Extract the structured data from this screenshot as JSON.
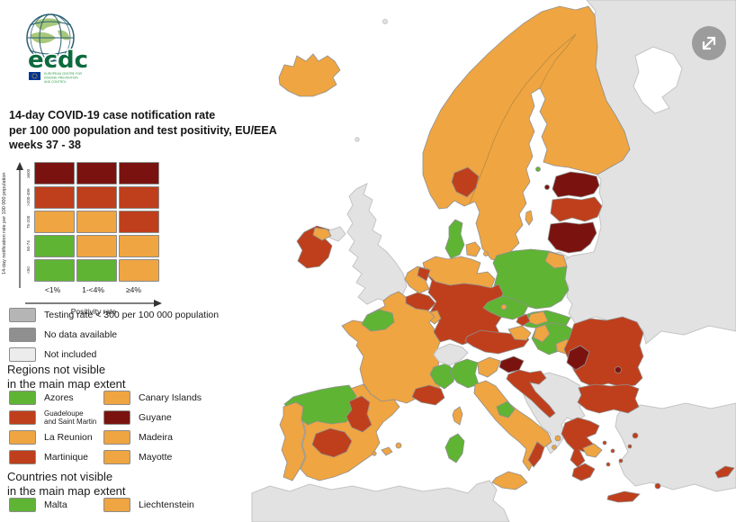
{
  "logo": {
    "wordmark": "ecdc",
    "org_lines": [
      "EUROPEAN CENTRE FOR",
      "DISEASE PREVENTION",
      "AND CONTROL"
    ]
  },
  "title": {
    "lines": [
      "14-day COVID-19 case notification rate",
      "per 100 000 population and test positivity, EU/EEA",
      "weeks 37 - 38"
    ]
  },
  "palette": {
    "green": "#5fb434",
    "orange": "#efa541",
    "red": "#bf3f1c",
    "darkred": "#7a130f",
    "gray_testing": "#b5b5b5",
    "gray_nodata": "#8f8f8f",
    "gray_notincluded": "#ececec",
    "land": "#e2e2e2",
    "sea": "#ffffff"
  },
  "matrix": {
    "y_axis_label": "14-day notification rate per 100 000 population",
    "x_axis_label": "Positivity rate",
    "col_labels": [
      "<1%",
      "1-<4%",
      "≥4%"
    ],
    "rows": [
      {
        "label": "≥500",
        "cells": [
          "darkred",
          "darkred",
          "darkred"
        ]
      },
      {
        "label": ">200-499",
        "cells": [
          "red",
          "red",
          "red"
        ]
      },
      {
        "label": "75-200",
        "cells": [
          "orange",
          "orange",
          "red"
        ]
      },
      {
        "label": "50-74",
        "cells": [
          "green",
          "orange",
          "orange"
        ]
      },
      {
        "label": "<50",
        "cells": [
          "green",
          "green",
          "orange"
        ]
      }
    ]
  },
  "status_legend": [
    {
      "key": "gray_testing",
      "label": "Testing rate < 300 per 100 000 population"
    },
    {
      "key": "gray_nodata",
      "label": "No data available"
    },
    {
      "key": "gray_notincluded",
      "label": "Not included"
    }
  ],
  "regions_section": {
    "heading_lines": [
      "Regions not visible",
      "in the main map extent"
    ],
    "items": [
      {
        "label": "Azores",
        "color": "green"
      },
      {
        "label": "Canary Islands",
        "color": "orange"
      },
      {
        "label": "Guadeloupe and Saint Martin",
        "color": "red",
        "lines": [
          "Guadeloupe",
          "and Saint Martin"
        ]
      },
      {
        "label": "Guyane",
        "color": "darkred"
      },
      {
        "label": "La Reunion",
        "color": "orange"
      },
      {
        "label": "Madeira",
        "color": "orange"
      },
      {
        "label": "Martinique",
        "color": "red"
      },
      {
        "label": "Mayotte",
        "color": "orange"
      }
    ]
  },
  "countries_section": {
    "heading_lines": [
      "Countries not visible",
      "in the main map extent"
    ],
    "items": [
      {
        "label": "Malta",
        "color": "green"
      },
      {
        "label": "Liechtenstein",
        "color": "orange"
      }
    ]
  },
  "map": {
    "regions": {
      "iceland": "orange",
      "fennoscandia": "orange",
      "norway_oslo_region": "red",
      "aland": "green",
      "gotland": "orange",
      "estonia": "darkred",
      "estonia_islands": "darkred",
      "latvia": "red",
      "lithuania": "darkred",
      "denmark_jutland": "green",
      "denmark_islands": "orange",
      "denmark_island_2": "orange",
      "ireland": "red",
      "ireland_northeast": "orange",
      "poland": "green",
      "poland_northeast": "orange",
      "germany_north": "orange",
      "germany_main": "red",
      "netherlands": "orange",
      "netherlands_northeast": "red",
      "belgium": "red",
      "luxembourg": "orange",
      "france": "orange",
      "france_normandy": "green",
      "france_rhone_alpes": "green",
      "france_paca": "red",
      "corsica": "orange",
      "spain": "orange",
      "spain_northwest": "green",
      "spain_aragon": "red",
      "spain_castilla_la_mancha": "red",
      "balearic_mallorca": "orange",
      "balearic_minorca": "orange",
      "balearic_ibiza": "orange",
      "portugal": "orange",
      "italy_northwest": "green",
      "italy_northeast": "orange",
      "italy_peninsula": "orange",
      "italy_central": "green",
      "italy_calabria": "red",
      "sicily": "orange",
      "sardinia": "green",
      "slovenia": "darkred",
      "croatia": "red",
      "czechia": "green",
      "czechia_prague": "orange",
      "austria": "red",
      "austria_northeast": "orange",
      "slovakia": "green",
      "slovakia_mid": "orange",
      "slovakia_west": "red",
      "hungary": "green",
      "hungary_west": "orange",
      "hungary_southeast": "orange",
      "romania": "red",
      "romania_west": "darkred",
      "romania_center_dot": "darkred",
      "bulgaria": "red",
      "greece": "red",
      "greece_peloponnese": "red",
      "greece_attica": "orange",
      "ionian_1": "orange",
      "ionian_2": "orange",
      "aegean_1": "red",
      "aegean_2": "red",
      "aegean_3": "red",
      "aegean_4": "red",
      "aegean_5": "red",
      "lesbos": "red",
      "rhodes": "red",
      "crete": "red",
      "cyprus": "red",
      "uk": "land",
      "northern_ireland_uk": "land",
      "switzerland": "land",
      "russia_belarus_ukraine": "land",
      "kaliningrad": "land",
      "western_balkans": "land",
      "turkey": "land",
      "north_africa": "land",
      "faroe": "land",
      "shetland": "land"
    }
  }
}
